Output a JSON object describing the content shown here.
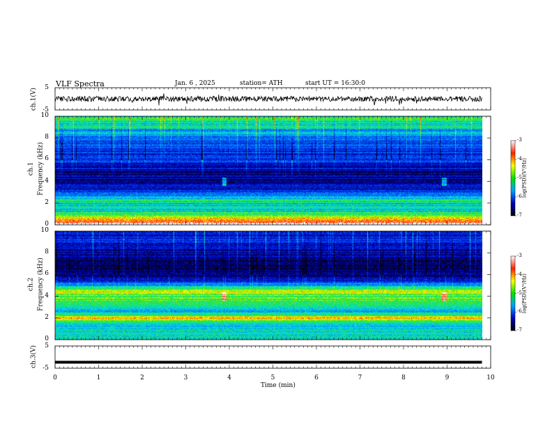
{
  "header": {
    "title": "VLF Spectra",
    "date": "Jan. 6 , 2025",
    "station": "station= ATH",
    "start_ut": "start UT = 16:30:0"
  },
  "panels": {
    "ch1_wave": {
      "ylabel": "ch.1(V)",
      "ticks": [
        "5",
        "-5"
      ]
    },
    "ch1_spec": {
      "ylabel_ch": "ch.1",
      "ylabel_freq": "Frequency (kHz)",
      "ticks": [
        "10",
        "8",
        "6",
        "4",
        "2",
        "0"
      ]
    },
    "ch2_spec": {
      "ylabel_ch": "ch.2",
      "ylabel_freq": "Frequency (kHz)",
      "ticks": [
        "10",
        "8",
        "6",
        "4",
        "2",
        "0"
      ]
    },
    "ch3_wave": {
      "ylabel": "ch.3(V)",
      "ticks": [
        "5",
        "-5"
      ]
    }
  },
  "xaxis": {
    "label": "Time (min)",
    "ticks": [
      "0",
      "1",
      "2",
      "3",
      "4",
      "5",
      "6",
      "7",
      "8",
      "9",
      "10"
    ]
  },
  "colorbar": {
    "label": "log(PSD)(V²/Hz)",
    "ticks": [
      "-3",
      "-4",
      "-5",
      "-6",
      "-7"
    ],
    "colors": [
      "#ffffff",
      "#ff2000",
      "#ffff00",
      "#00e000",
      "#00a0ff",
      "#0000c0",
      "#000000"
    ]
  },
  "chart_data": [
    {
      "type": "line",
      "name": "ch.1 waveform",
      "xlim": [
        0,
        10
      ],
      "ylim": [
        -5,
        5
      ],
      "xlabel": "Time (min)",
      "ylabel": "ch.1(V)",
      "approx_amplitude_V": 1.2
    },
    {
      "type": "heatmap",
      "xlim": [
        0,
        10
      ],
      "ylim": [
        0,
        10
      ],
      "xlabel": "Time (min)",
      "ylabel": "ch.1 Frequency (kHz)",
      "color_range_log_psd": [
        -7,
        -3
      ],
      "data_end_min": 9.8,
      "bands_khz": [
        {
          "f": 0.5,
          "level": -3.5
        },
        {
          "f": 1.0,
          "level": -4.5
        },
        {
          "f": 1.5,
          "level": -5.2
        },
        {
          "f": 2.2,
          "level": -5.0
        },
        {
          "f": 3.3,
          "level": -6.3
        },
        {
          "f": 4.2,
          "level": -6.6
        },
        {
          "f": 5.0,
          "level": -6.5
        },
        {
          "f": 6.2,
          "level": -6.0
        },
        {
          "f": 7.5,
          "level": -5.8
        },
        {
          "f": 8.8,
          "level": -5.2
        },
        {
          "f": 9.7,
          "level": -4.8
        }
      ],
      "markers_min": [
        3.88,
        8.92
      ]
    },
    {
      "type": "heatmap",
      "xlim": [
        0,
        10
      ],
      "ylim": [
        0,
        10
      ],
      "xlabel": "Time (min)",
      "ylabel": "ch.2 Frequency (kHz)",
      "color_range_log_psd": [
        -7,
        -3
      ],
      "data_end_min": 9.8,
      "bands_khz": [
        {
          "f": 0.6,
          "level": -5.0
        },
        {
          "f": 1.4,
          "level": -5.1
        },
        {
          "f": 2.0,
          "level": -3.8
        },
        {
          "f": 2.6,
          "level": -5.3
        },
        {
          "f": 3.4,
          "level": -4.6
        },
        {
          "f": 4.6,
          "level": -4.2
        },
        {
          "f": 5.5,
          "level": -6.4
        },
        {
          "f": 7.0,
          "level": -6.8
        },
        {
          "f": 9.0,
          "level": -6.2
        }
      ],
      "markers_min": [
        3.88,
        8.92
      ]
    },
    {
      "type": "line",
      "name": "ch.3 waveform",
      "xlim": [
        0,
        10
      ],
      "ylim": [
        -5,
        5
      ],
      "xlabel": "Time (min)",
      "ylabel": "ch.3(V)",
      "approx_level_V": -2.3
    }
  ]
}
